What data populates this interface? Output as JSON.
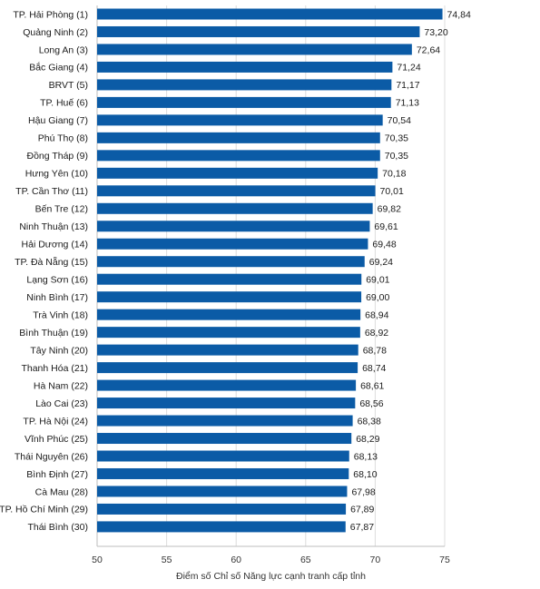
{
  "chart_data": {
    "type": "bar",
    "orientation": "horizontal",
    "categories": [
      "TP. Hải Phòng (1)",
      "Quảng Ninh (2)",
      "Long An (3)",
      "Bắc Giang (4)",
      "BRVT (5)",
      "TP. Huế (6)",
      "Hậu Giang (7)",
      "Phú Thọ (8)",
      "Đồng Tháp (9)",
      "Hưng Yên (10)",
      "TP. Cần Thơ (11)",
      "Bến Tre (12)",
      "Ninh Thuận (13)",
      "Hải Dương (14)",
      "TP. Đà Nẵng (15)",
      "Lạng Sơn (16)",
      "Ninh Bình (17)",
      "Trà Vinh (18)",
      "Bình Thuận (19)",
      "Tây Ninh (20)",
      "Thanh Hóa (21)",
      "Hà Nam (22)",
      "Lào Cai (23)",
      "TP. Hà Nội (24)",
      "Vĩnh Phúc (25)",
      "Thái Nguyên (26)",
      "Bình Định (27)",
      "Cà Mau (28)",
      "TP. Hồ Chí Minh (29)",
      "Thái Bình (30)"
    ],
    "values": [
      74.84,
      73.2,
      72.64,
      71.24,
      71.17,
      71.13,
      70.54,
      70.35,
      70.35,
      70.18,
      70.01,
      69.82,
      69.61,
      69.48,
      69.24,
      69.01,
      69.0,
      68.94,
      68.92,
      68.78,
      68.74,
      68.61,
      68.56,
      68.38,
      68.29,
      68.13,
      68.1,
      67.98,
      67.89,
      67.87
    ],
    "value_labels": [
      "74,84",
      "73,20",
      "72,64",
      "71,24",
      "71,17",
      "71,13",
      "70,54",
      "70,35",
      "70,35",
      "70,18",
      "70,01",
      "69,82",
      "69,61",
      "69,48",
      "69,24",
      "69,01",
      "69,00",
      "68,94",
      "68,92",
      "68,78",
      "68,74",
      "68,61",
      "68,56",
      "68,38",
      "68,29",
      "68,13",
      "68,10",
      "67,98",
      "67,89",
      "67,87"
    ],
    "xlabel": "Điểm số Chỉ số Năng lực cạnh tranh cấp tỉnh",
    "ylabel": "",
    "xlim": [
      50,
      75
    ],
    "xticks": [
      50,
      55,
      60,
      65,
      70,
      75
    ],
    "xtick_labels": [
      "50",
      "55",
      "60",
      "65",
      "70",
      "75"
    ],
    "grid": true,
    "colors": {
      "bar": "#0b5ba6",
      "grid": "#dcdcdc",
      "axis": "#bdbdbd",
      "text": "#1a1a1a"
    }
  }
}
